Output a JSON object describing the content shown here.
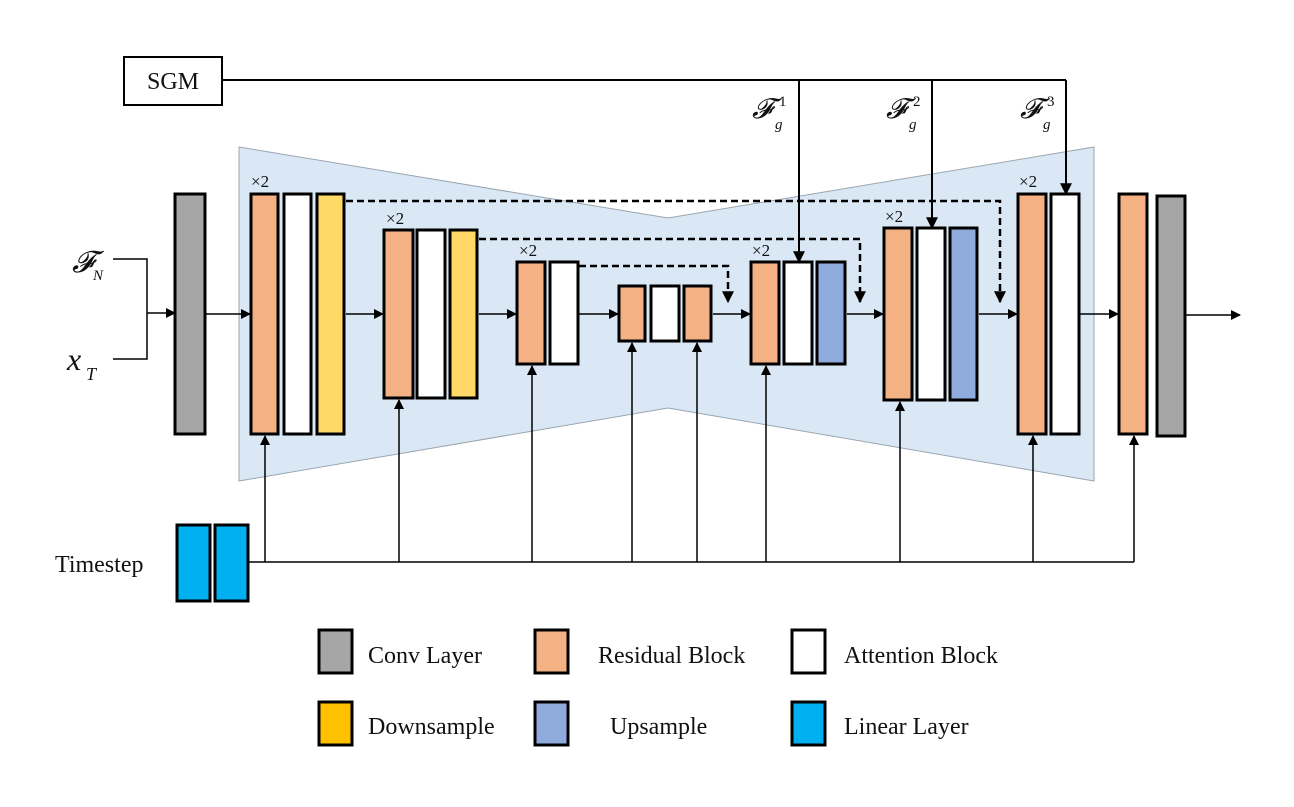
{
  "labels": {
    "sgm": "SGM",
    "timestep": "Timestep",
    "input_f_main": "𝓕",
    "input_f_sub": "N",
    "input_x_main": "x",
    "input_x_sub": "T",
    "fg1_main": "𝓕",
    "fg1_sub": "g",
    "fg1_sup": "1",
    "fg2_main": "𝓕",
    "fg2_sub": "g",
    "fg2_sup": "2",
    "fg3_main": "𝓕",
    "fg3_sub": "g",
    "fg3_sup": "3",
    "multiplier": "×2"
  },
  "legend": {
    "conv": "Conv Layer",
    "residual": "Residual Block",
    "attention": "Attention Block",
    "downsample": "Downsample",
    "upsample": "Upsample",
    "linear": "Linear Layer"
  },
  "colors": {
    "conv": "#a6a6a6",
    "residual": "#f4b183",
    "attention": "#ffffff",
    "downsample": "#ffd966",
    "downsample_legend": "#ffc000",
    "upsample": "#8faadc",
    "linear": "#00b0f0",
    "unet_bg": "#dae8f5"
  }
}
